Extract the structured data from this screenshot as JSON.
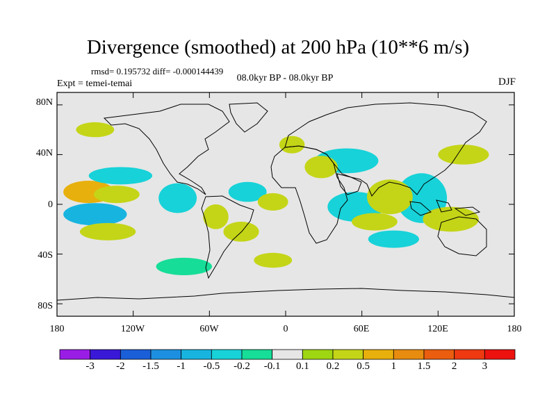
{
  "title": "Divergence (smoothed) at 200 hPa (10**6 m/s)",
  "stats": "rmsd= 0.195732 diff= -0.000144439",
  "experiment": "Expt = temei-temai",
  "period": "08.0kyr BP - 08.0kyr BP",
  "season": "DJF",
  "lat_ticks": [
    "80N",
    "40N",
    "0",
    "40S",
    "80S"
  ],
  "lon_ticks": [
    "180",
    "120W",
    "60W",
    "0",
    "60E",
    "120E",
    "180"
  ],
  "colorbar": {
    "labels": [
      "-3",
      "-2",
      "-1.5",
      "-1",
      "-0.5",
      "-0.2",
      "-0.1",
      "0.1",
      "0.2",
      "0.5",
      "1",
      "1.5",
      "2",
      "3"
    ],
    "colors": [
      "#9a1de6",
      "#3a18d8",
      "#1a5ed8",
      "#1d8fe0",
      "#18b4e0",
      "#17d2d8",
      "#16dd97",
      "#e6e6e6",
      "#9ed611",
      "#c4d517",
      "#e8b00c",
      "#e88c0f",
      "#eb5d0f",
      "#ee3911",
      "#ec120f"
    ]
  },
  "chart_data": {
    "type": "filled-contour-map",
    "variable": "Divergence (smoothed) at 200 hPa",
    "units": "10**6 m/s",
    "x_range": [
      -180,
      180
    ],
    "y_range": [
      -90,
      90
    ],
    "contour_levels": [
      -3,
      -2,
      -1.5,
      -1,
      -0.5,
      -0.2,
      -0.1,
      0.1,
      0.2,
      0.5,
      1,
      1.5,
      2,
      3
    ],
    "features": [
      {
        "name": "warm-pool-negative",
        "lon": 102,
        "lat": 8,
        "rx": 10,
        "ry": 9,
        "value": -1.2
      },
      {
        "name": "warm-pool-neg-outer",
        "lon": 107,
        "lat": 5,
        "rx": 20,
        "ry": 20,
        "value": -0.4
      },
      {
        "name": "africa-neg",
        "lon": 55,
        "lat": 0,
        "rx": 12,
        "ry": 8,
        "value": -1.0
      },
      {
        "name": "africa-neg-outer",
        "lon": 55,
        "lat": -2,
        "rx": 22,
        "ry": 12,
        "value": -0.3
      },
      {
        "name": "indian-pos",
        "lon": 85,
        "lat": 8,
        "rx": 9,
        "ry": 8,
        "value": 0.8
      },
      {
        "name": "indian-pos-outer",
        "lon": 82,
        "lat": 6,
        "rx": 18,
        "ry": 14,
        "value": 0.3
      },
      {
        "name": "mideast-neg",
        "lon": 48,
        "lat": 35,
        "rx": 25,
        "ry": 10,
        "value": -0.3
      },
      {
        "name": "mideast-pos",
        "lon": 28,
        "lat": 30,
        "rx": 13,
        "ry": 9,
        "value": 0.4
      },
      {
        "name": "pacific-pos",
        "lon": -155,
        "lat": 10,
        "rx": 20,
        "ry": 9,
        "value": 0.6
      },
      {
        "name": "pacific-pos-2",
        "lon": -133,
        "lat": 8,
        "rx": 18,
        "ry": 7,
        "value": 0.3
      },
      {
        "name": "pacific-neg-south",
        "lon": -150,
        "lat": -8,
        "rx": 25,
        "ry": 9,
        "value": -0.6
      },
      {
        "name": "pacific-neg-north",
        "lon": -130,
        "lat": 23,
        "rx": 25,
        "ry": 7,
        "value": -0.3
      },
      {
        "name": "pacific-pos-south",
        "lon": -140,
        "lat": -22,
        "rx": 22,
        "ry": 7,
        "value": 0.3
      },
      {
        "name": "e-pacific-neg",
        "lon": -85,
        "lat": 5,
        "rx": 15,
        "ry": 12,
        "value": -0.5
      },
      {
        "name": "atlantic-neg",
        "lon": -30,
        "lat": 10,
        "rx": 15,
        "ry": 8,
        "value": -0.4
      },
      {
        "name": "atlantic-pos",
        "lon": -10,
        "lat": 2,
        "rx": 12,
        "ry": 7,
        "value": 0.3
      },
      {
        "name": "atlantic-pos-s",
        "lon": -35,
        "lat": -22,
        "rx": 14,
        "ry": 8,
        "value": 0.3
      },
      {
        "name": "samer-pos",
        "lon": -55,
        "lat": -10,
        "rx": 10,
        "ry": 10,
        "value": 0.3
      },
      {
        "name": "aus-pos",
        "lon": 130,
        "lat": -12,
        "rx": 22,
        "ry": 10,
        "value": 0.4
      },
      {
        "name": "s-indian-neg",
        "lon": 85,
        "lat": -28,
        "rx": 20,
        "ry": 7,
        "value": -0.3
      },
      {
        "name": "s-indian-pos",
        "lon": 70,
        "lat": -14,
        "rx": 18,
        "ry": 7,
        "value": 0.3
      },
      {
        "name": "n-atl-pos",
        "lon": 5,
        "lat": 48,
        "rx": 10,
        "ry": 7,
        "value": 0.3
      },
      {
        "name": "n-pac-pos",
        "lon": -150,
        "lat": 60,
        "rx": 15,
        "ry": 6,
        "value": 0.3
      },
      {
        "name": "n-pac-pos2",
        "lon": 140,
        "lat": 40,
        "rx": 20,
        "ry": 8,
        "value": 0.3
      },
      {
        "name": "s-ocean-neg",
        "lon": -80,
        "lat": -50,
        "rx": 22,
        "ry": 7,
        "value": -0.2
      },
      {
        "name": "s-ocean-pos",
        "lon": -10,
        "lat": -45,
        "rx": 15,
        "ry": 6,
        "value": 0.3
      }
    ]
  }
}
